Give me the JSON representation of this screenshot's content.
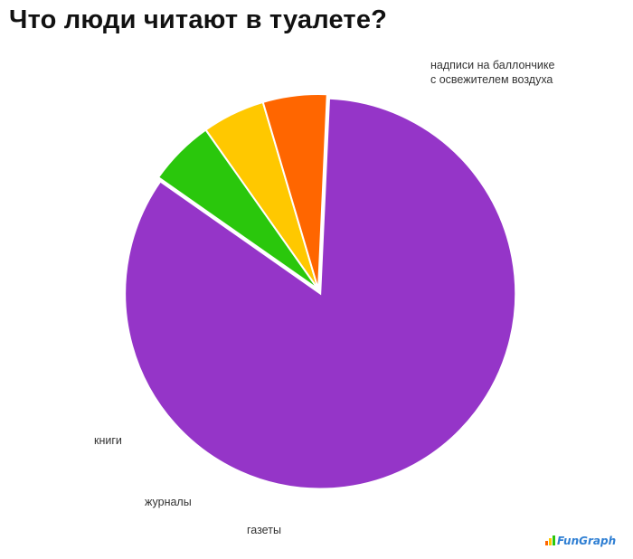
{
  "title": "Что люди читают в туалете?",
  "logo_text": "FunGraph",
  "chart_data": {
    "type": "pie",
    "title": "Что люди читают в туалете?",
    "slices": [
      {
        "label": "надписи на баллончике с освежителем воздуха",
        "value": 84,
        "color": "#9535c8",
        "label_lines": [
          "надписи на баллончике",
          "с освежителем воздуха"
        ]
      },
      {
        "label": "газеты",
        "value": 5.5,
        "color": "#2ac70c",
        "label_lines": [
          "газеты"
        ]
      },
      {
        "label": "журналы",
        "value": 5.2,
        "color": "#ffc800",
        "label_lines": [
          "журналы"
        ]
      },
      {
        "label": "книги",
        "value": 5.3,
        "color": "#ff6600",
        "label_lines": [
          "книги"
        ]
      }
    ],
    "exploded": [
      0
    ],
    "legend": "none"
  }
}
